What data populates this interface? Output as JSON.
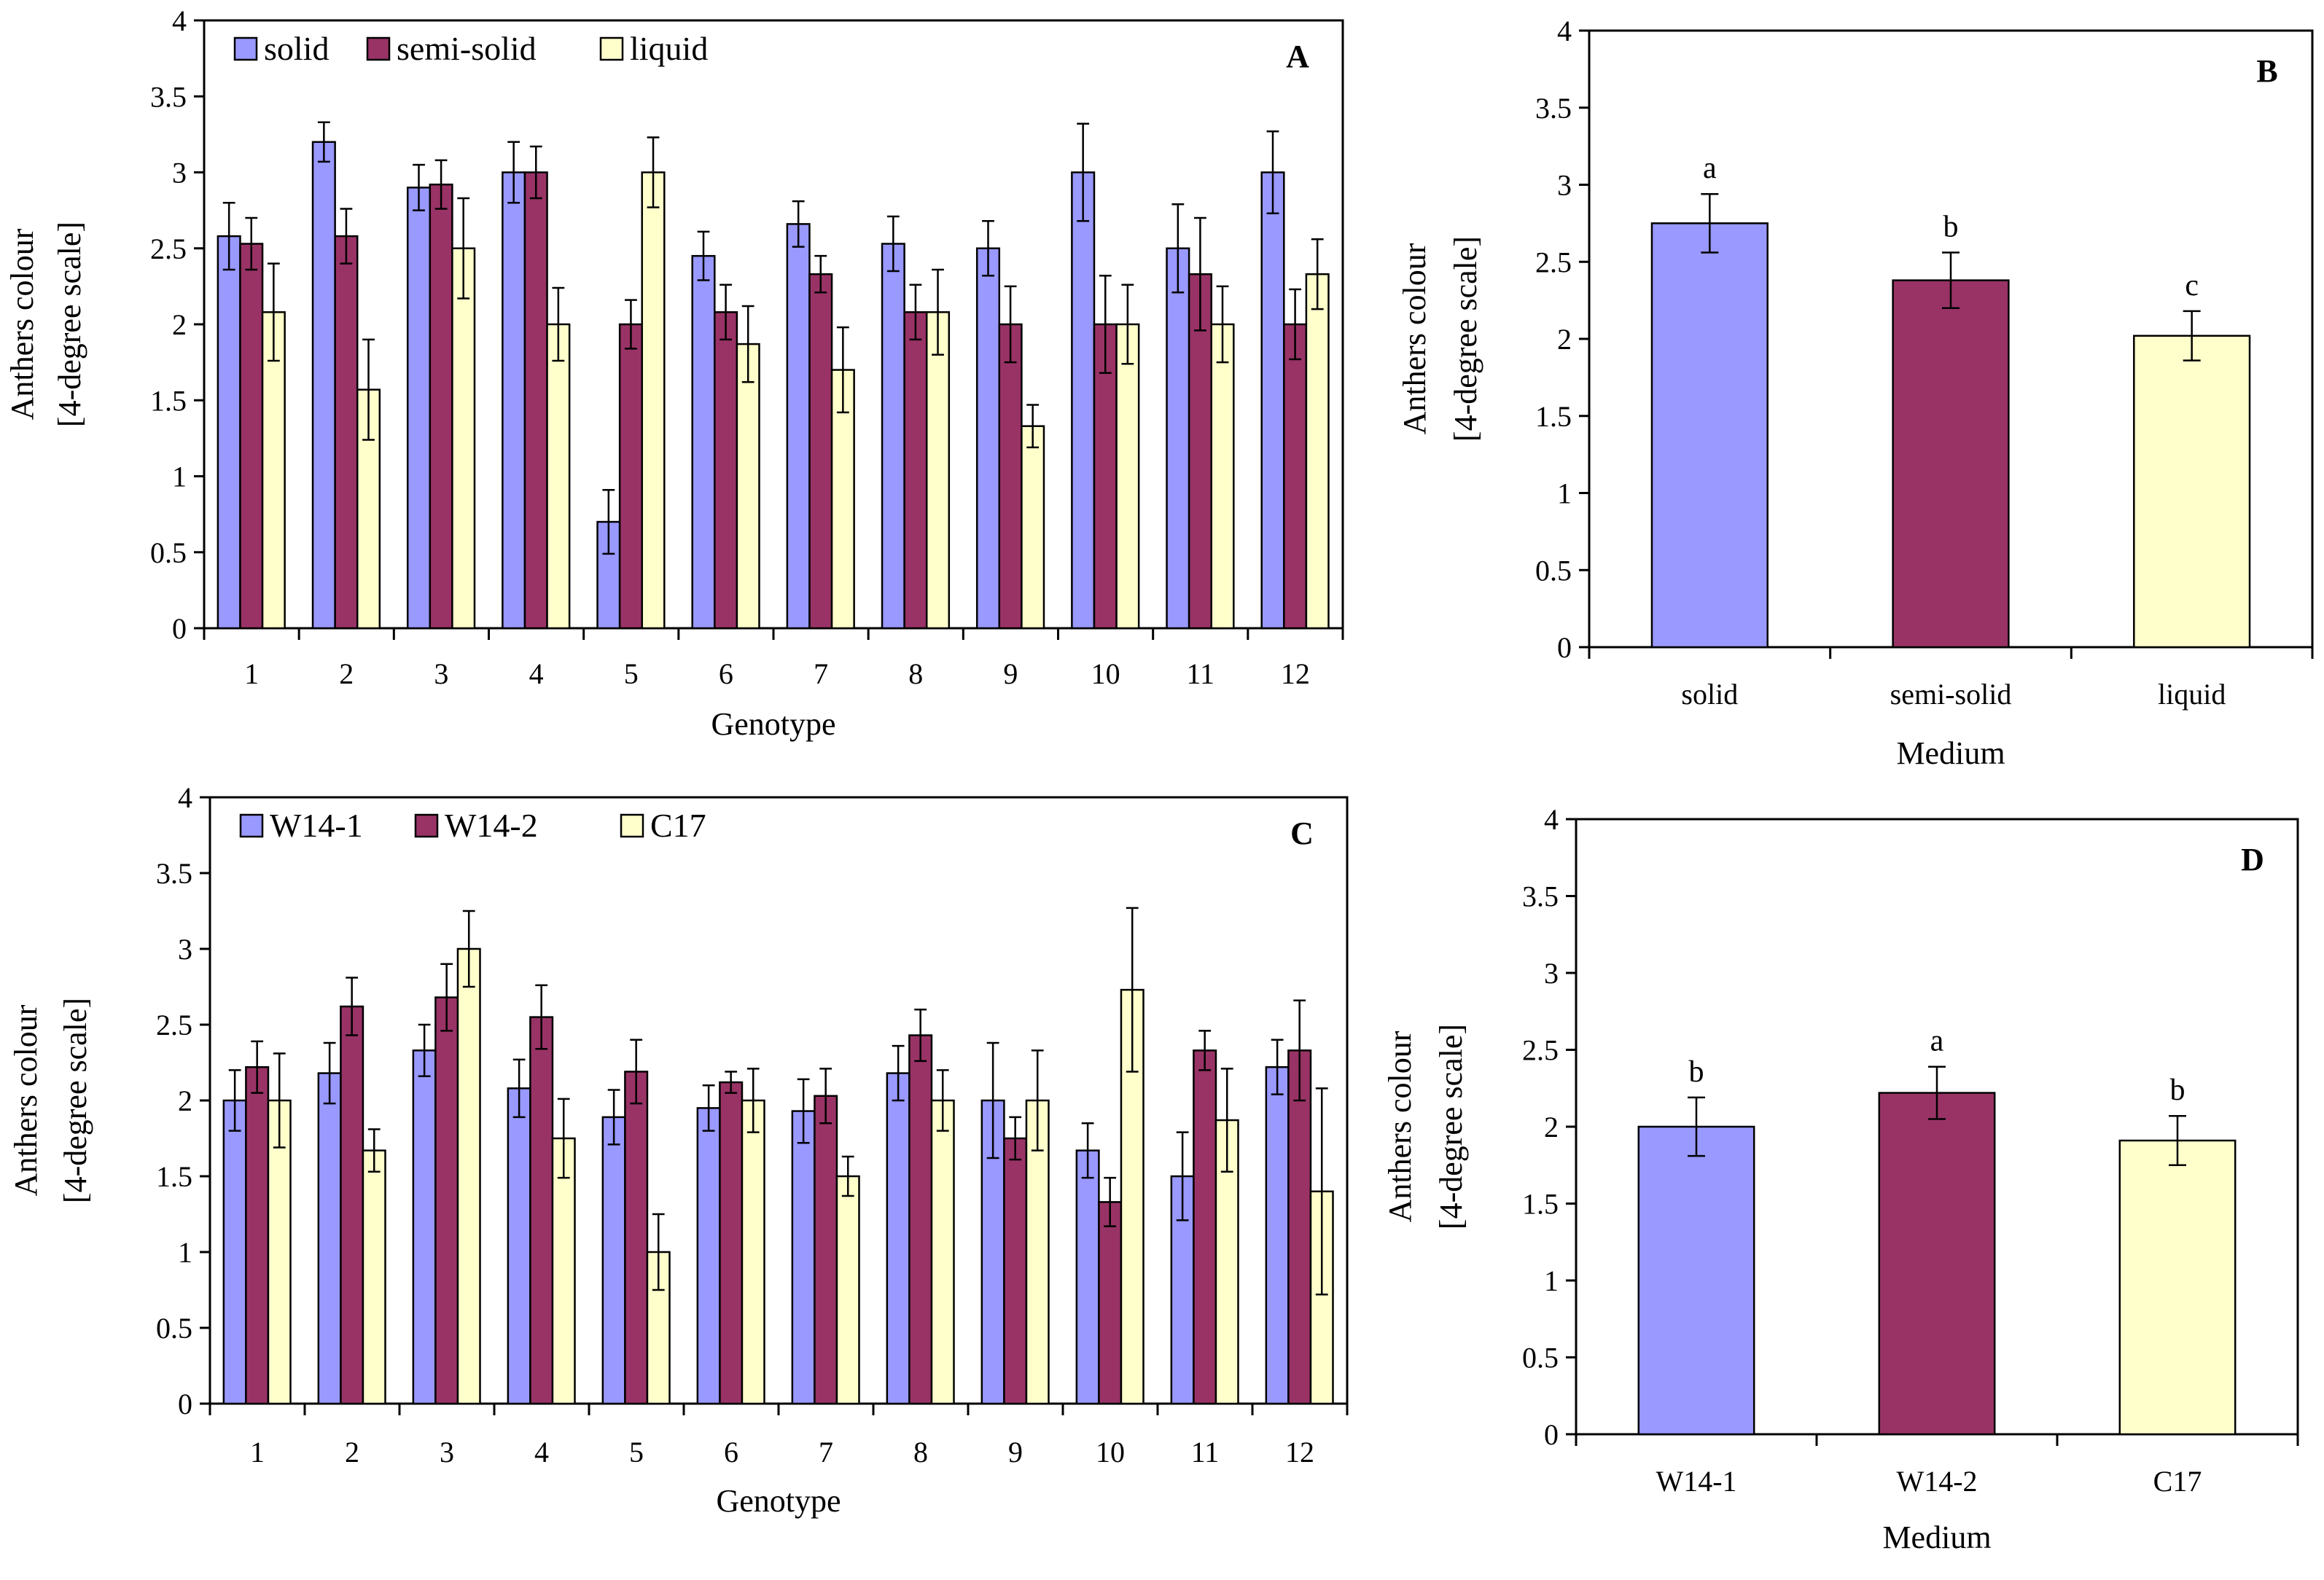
{
  "colors": {
    "s1": "#9999FF",
    "s2": "#993366",
    "s3": "#FFFFCC"
  },
  "chart_data": [
    {
      "id": "A",
      "type": "bar",
      "panel_label": "A",
      "xlabel": "Genotype",
      "ylabel": [
        "Anthers colour",
        "[4-degree scale]"
      ],
      "ylim": [
        0,
        4
      ],
      "yticks": [
        "0",
        "0.5",
        "1",
        "1.5",
        "2",
        "2.5",
        "3",
        "3.5",
        "4"
      ],
      "legend": "top-left",
      "categories": [
        "1",
        "2",
        "3",
        "4",
        "5",
        "6",
        "7",
        "8",
        "9",
        "10",
        "11",
        "12"
      ],
      "series": [
        {
          "name": "solid",
          "values": [
            2.58,
            3.2,
            2.9,
            3.0,
            0.7,
            2.45,
            2.66,
            2.53,
            2.5,
            3.0,
            2.5,
            3.0
          ],
          "errors": [
            0.22,
            0.13,
            0.15,
            0.2,
            0.21,
            0.16,
            0.15,
            0.18,
            0.18,
            0.32,
            0.29,
            0.27
          ]
        },
        {
          "name": "semi-solid",
          "values": [
            2.53,
            2.58,
            2.92,
            3.0,
            2.0,
            2.08,
            2.33,
            2.08,
            2.0,
            2.0,
            2.33,
            2.0
          ],
          "errors": [
            0.17,
            0.18,
            0.16,
            0.17,
            0.16,
            0.18,
            0.12,
            0.18,
            0.25,
            0.32,
            0.37,
            0.23
          ]
        },
        {
          "name": "liquid",
          "values": [
            2.08,
            1.57,
            2.5,
            2.0,
            3.0,
            1.87,
            1.7,
            2.08,
            1.33,
            2.0,
            2.0,
            2.33
          ],
          "errors": [
            0.32,
            0.33,
            0.33,
            0.24,
            0.23,
            0.25,
            0.28,
            0.28,
            0.14,
            0.26,
            0.25,
            0.23
          ]
        }
      ]
    },
    {
      "id": "B",
      "type": "bar",
      "panel_label": "B",
      "xlabel": "Medium",
      "ylabel": [
        "Anthers colour",
        "[4-degree scale]"
      ],
      "ylim": [
        0,
        4
      ],
      "yticks": [
        "0",
        "0.5",
        "1",
        "1.5",
        "2",
        "2.5",
        "3",
        "3.5",
        "4"
      ],
      "categories": [
        "solid",
        "semi-solid",
        "liquid"
      ],
      "values": [
        2.75,
        2.38,
        2.02
      ],
      "errors": [
        0.19,
        0.18,
        0.16
      ],
      "letters": [
        "a",
        "b",
        "c"
      ]
    },
    {
      "id": "C",
      "type": "bar",
      "panel_label": "C",
      "xlabel": "Genotype",
      "ylabel": [
        "Anthers colour",
        "[4-degree scale]"
      ],
      "ylim": [
        0,
        4
      ],
      "yticks": [
        "0",
        "0.5",
        "1",
        "1.5",
        "2",
        "2.5",
        "3",
        "3.5",
        "4"
      ],
      "legend": "top-left",
      "categories": [
        "1",
        "2",
        "3",
        "4",
        "5",
        "6",
        "7",
        "8",
        "9",
        "10",
        "11",
        "12"
      ],
      "series": [
        {
          "name": "W14-1",
          "values": [
            2.0,
            2.18,
            2.33,
            2.08,
            1.89,
            1.95,
            1.93,
            2.18,
            2.0,
            1.67,
            1.5,
            2.22
          ],
          "errors": [
            0.2,
            0.2,
            0.17,
            0.19,
            0.18,
            0.15,
            0.21,
            0.18,
            0.38,
            0.18,
            0.29,
            0.18
          ]
        },
        {
          "name": "W14-2",
          "values": [
            2.22,
            2.62,
            2.68,
            2.55,
            2.19,
            2.12,
            2.03,
            2.43,
            1.75,
            1.33,
            2.33,
            2.33
          ],
          "errors": [
            0.17,
            0.19,
            0.22,
            0.21,
            0.21,
            0.07,
            0.18,
            0.17,
            0.14,
            0.16,
            0.13,
            0.33
          ]
        },
        {
          "name": "C17",
          "values": [
            2.0,
            1.67,
            3.0,
            1.75,
            1.0,
            2.0,
            1.5,
            2.0,
            2.0,
            2.73,
            1.87,
            1.4
          ],
          "errors": [
            0.31,
            0.14,
            0.25,
            0.26,
            0.25,
            0.21,
            0.13,
            0.2,
            0.33,
            0.54,
            0.34,
            0.68
          ]
        }
      ]
    },
    {
      "id": "D",
      "type": "bar",
      "panel_label": "D",
      "xlabel": "Medium",
      "ylabel": [
        "Anthers colour",
        "[4-degree scale]"
      ],
      "ylim": [
        0,
        4
      ],
      "yticks": [
        "0",
        "0.5",
        "1",
        "1.5",
        "2",
        "2.5",
        "3",
        "3.5",
        "4"
      ],
      "categories": [
        "W14-1",
        "W14-2",
        "C17"
      ],
      "values": [
        2.0,
        2.22,
        1.91
      ],
      "errors": [
        0.19,
        0.17,
        0.16
      ],
      "letters": [
        "b",
        "a",
        "b"
      ]
    }
  ]
}
